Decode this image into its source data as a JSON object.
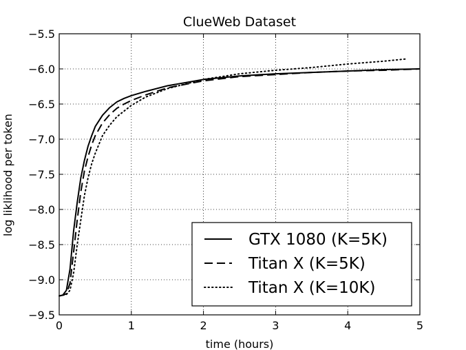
{
  "chart_data": {
    "type": "line",
    "title": "ClueWeb Dataset",
    "xlabel": "time (hours)",
    "ylabel": "log liklihood per token",
    "xlim": [
      0,
      5
    ],
    "ylim": [
      -9.5,
      -5.5
    ],
    "xticks": [
      0,
      1,
      2,
      3,
      4,
      5
    ],
    "xtick_labels": [
      "0",
      "1",
      "2",
      "3",
      "4",
      "5"
    ],
    "yticks": [
      -5.5,
      -6.0,
      -6.5,
      -7.0,
      -7.5,
      -8.0,
      -8.5,
      -9.0,
      -9.5
    ],
    "ytick_labels": [
      "−5.5",
      "−6.0",
      "−6.5",
      "−7.0",
      "−7.5",
      "−8.0",
      "−8.5",
      "−9.0",
      "−9.5"
    ],
    "grid": true,
    "legend_position": "bottom-right",
    "series": [
      {
        "name": "GTX 1080 (K=5K)",
        "style": "solid",
        "color": "#000000",
        "x": [
          0.0,
          0.05,
          0.1,
          0.15,
          0.2,
          0.25,
          0.3,
          0.35,
          0.4,
          0.45,
          0.5,
          0.6,
          0.7,
          0.8,
          0.9,
          1.0,
          1.2,
          1.5,
          2.0,
          2.5,
          3.0,
          3.5,
          4.0,
          4.5,
          5.0
        ],
        "y": [
          -9.23,
          -9.22,
          -9.15,
          -8.85,
          -8.3,
          -7.9,
          -7.55,
          -7.3,
          -7.1,
          -6.95,
          -6.82,
          -6.66,
          -6.55,
          -6.47,
          -6.42,
          -6.38,
          -6.32,
          -6.24,
          -6.15,
          -6.1,
          -6.07,
          -6.05,
          -6.03,
          -6.01,
          -6.0
        ]
      },
      {
        "name": "Titan X (K=5K)",
        "style": "dashed",
        "color": "#000000",
        "x": [
          0.0,
          0.05,
          0.1,
          0.15,
          0.2,
          0.25,
          0.3,
          0.35,
          0.4,
          0.45,
          0.5,
          0.6,
          0.7,
          0.8,
          0.9,
          1.0,
          1.2,
          1.5,
          2.0,
          2.5,
          3.0,
          3.5,
          4.0,
          4.5,
          5.0
        ],
        "y": [
          -9.23,
          -9.22,
          -9.2,
          -9.05,
          -8.6,
          -8.15,
          -7.75,
          -7.45,
          -7.25,
          -7.08,
          -6.95,
          -6.77,
          -6.65,
          -6.56,
          -6.5,
          -6.45,
          -6.37,
          -6.27,
          -6.17,
          -6.11,
          -6.08,
          -6.05,
          -6.03,
          -6.02,
          -6.0
        ]
      },
      {
        "name": "Titan X (K=10K)",
        "style": "dotted",
        "color": "#000000",
        "x": [
          0.0,
          0.05,
          0.1,
          0.15,
          0.2,
          0.25,
          0.3,
          0.35,
          0.4,
          0.45,
          0.5,
          0.6,
          0.7,
          0.8,
          0.9,
          1.0,
          1.2,
          1.5,
          2.0,
          2.5,
          3.0,
          3.5,
          4.0,
          4.5,
          4.8
        ],
        "y": [
          -9.23,
          -9.22,
          -9.21,
          -9.15,
          -8.9,
          -8.5,
          -8.15,
          -7.8,
          -7.55,
          -7.35,
          -7.2,
          -6.95,
          -6.8,
          -6.68,
          -6.6,
          -6.52,
          -6.4,
          -6.28,
          -6.15,
          -6.07,
          -6.02,
          -5.98,
          -5.93,
          -5.89,
          -5.86
        ]
      }
    ]
  }
}
